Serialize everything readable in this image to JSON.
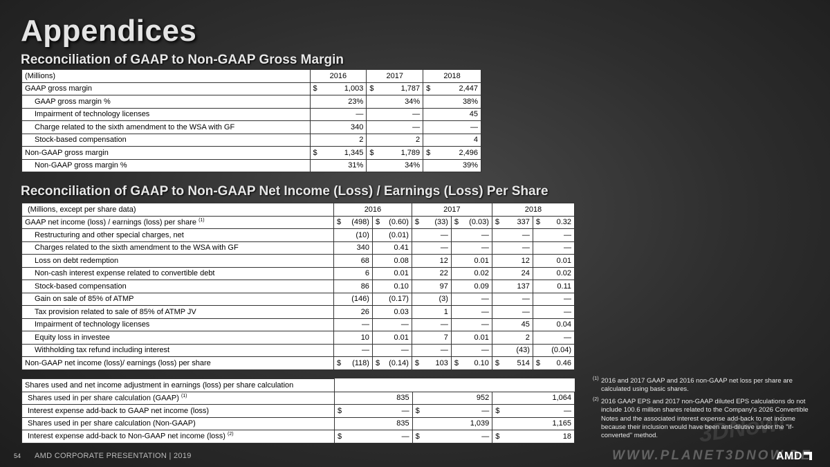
{
  "title": "Appendices",
  "section1": {
    "title": "Reconciliation of GAAP to Non-GAAP Gross Margin",
    "header": [
      "(Millions)",
      "2016",
      "2017",
      "2018"
    ],
    "rows": [
      {
        "label": "GAAP gross margin",
        "dollar": true,
        "values": [
          "1,003",
          "1,787",
          "2,447"
        ]
      },
      {
        "label": "GAAP gross margin %",
        "dollar": false,
        "values": [
          "23%",
          "34%",
          "38%"
        ]
      },
      {
        "label": "Impairment of technology licenses",
        "dollar": false,
        "values": [
          "—",
          "—",
          "45"
        ]
      },
      {
        "label": "Charge related to the sixth amendment to the WSA with GF",
        "dollar": false,
        "values": [
          "340",
          "—",
          "—"
        ]
      },
      {
        "label": "Stock-based compensation",
        "dollar": false,
        "values": [
          "2",
          "2",
          "4"
        ]
      },
      {
        "label": "Non-GAAP gross margin",
        "dollar": true,
        "values": [
          "1,345",
          "1,789",
          "2,496"
        ]
      },
      {
        "label": "Non-GAAP gross margin %",
        "dollar": false,
        "values": [
          "31%",
          "34%",
          "39%"
        ]
      }
    ]
  },
  "section2": {
    "title": "Reconciliation of GAAP to Non-GAAP Net Income (Loss) / Earnings (Loss) Per Share",
    "header": [
      "(Millions, except per share data)",
      "2016",
      "2017",
      "2018"
    ],
    "rows": [
      {
        "label": "GAAP net income (loss) / earnings (loss) per share",
        "sup": "(1)",
        "dollar": true,
        "values": [
          "(498)",
          "(0.60)",
          "(33)",
          "(0.03)",
          "337",
          "0.32"
        ]
      },
      {
        "label": "Restructuring and other special charges, net",
        "dollar": false,
        "values": [
          "(10)",
          "(0.01)",
          "—",
          "—",
          "—",
          "—"
        ]
      },
      {
        "label": "Charges related to the sixth amendment to the WSA with GF",
        "dollar": false,
        "values": [
          "340",
          "0.41",
          "—",
          "—",
          "—",
          "—"
        ]
      },
      {
        "label": "Loss on debt redemption",
        "dollar": false,
        "values": [
          "68",
          "0.08",
          "12",
          "0.01",
          "12",
          "0.01"
        ]
      },
      {
        "label": "Non-cash interest expense related to convertible debt",
        "dollar": false,
        "values": [
          "6",
          "0.01",
          "22",
          "0.02",
          "24",
          "0.02"
        ]
      },
      {
        "label": "Stock-based compensation",
        "dollar": false,
        "values": [
          "86",
          "0.10",
          "97",
          "0.09",
          "137",
          "0.11"
        ]
      },
      {
        "label": "Gain on sale of 85% of ATMP",
        "dollar": false,
        "values": [
          "(146)",
          "(0.17)",
          "(3)",
          "—",
          "—",
          "—"
        ]
      },
      {
        "label": "Tax provision related to sale of 85% of ATMP JV",
        "dollar": false,
        "values": [
          "26",
          "0.03",
          "1",
          "—",
          "—",
          "—"
        ]
      },
      {
        "label": "Impairment of technology licenses",
        "dollar": false,
        "values": [
          "—",
          "—",
          "—",
          "—",
          "45",
          "0.04"
        ]
      },
      {
        "label": "Equity loss in investee",
        "dollar": false,
        "values": [
          "10",
          "0.01",
          "7",
          "0.01",
          "2",
          "—"
        ]
      },
      {
        "label": "Withholding tax refund including interest",
        "dollar": false,
        "values": [
          "—",
          "—",
          "—",
          "—",
          "(43)",
          "(0.04)"
        ]
      },
      {
        "label": "Non-GAAP net income (loss)/ earnings (loss) per share",
        "dollar": true,
        "values": [
          "(118)",
          "(0.14)",
          "103",
          "0.10",
          "514",
          "0.46"
        ]
      }
    ]
  },
  "section3": {
    "header": "Shares used and net income adjustment in earnings (loss) per share calculation",
    "rows": [
      {
        "label": "Shares used in per share calculation (GAAP)",
        "sup": "(1)",
        "dollar": false,
        "values": [
          "835",
          "952",
          "1,064"
        ]
      },
      {
        "label": "Interest expense add-back to GAAP net income (loss)",
        "dollar": true,
        "values": [
          "—",
          "—",
          "—"
        ]
      },
      {
        "label": "Shares used in per share calculation (Non-GAAP)",
        "dollar": false,
        "values": [
          "835",
          "1,039",
          "1,165"
        ]
      },
      {
        "label": "Interest expense add-back to Non-GAAP net income (loss)",
        "sup": "(2)",
        "dollar": true,
        "values": [
          "—",
          "—",
          "18"
        ]
      }
    ]
  },
  "footnotes": [
    {
      "mark": "(1)",
      "text": "2016 and 2017 GAAP and 2016 non-GAAP net loss per share are calculated using basic shares."
    },
    {
      "mark": "(2)",
      "text": "2016 GAAP EPS and 2017 non-GAAP diluted EPS calculations do not include 100.6 million shares related to the Company's 2026 Convertible Notes and the associated interest expense add-back to net income because their inclusion would have been anti-dilutive under the \"if-converted\" method."
    }
  ],
  "footer": {
    "page": "54",
    "text": "AMD CORPORATE  PRESENTATION   |   2019",
    "watermark": "WWW.PLANET3DNOW.DE",
    "watermark_big": "3DNow!",
    "logo": "AMD"
  }
}
